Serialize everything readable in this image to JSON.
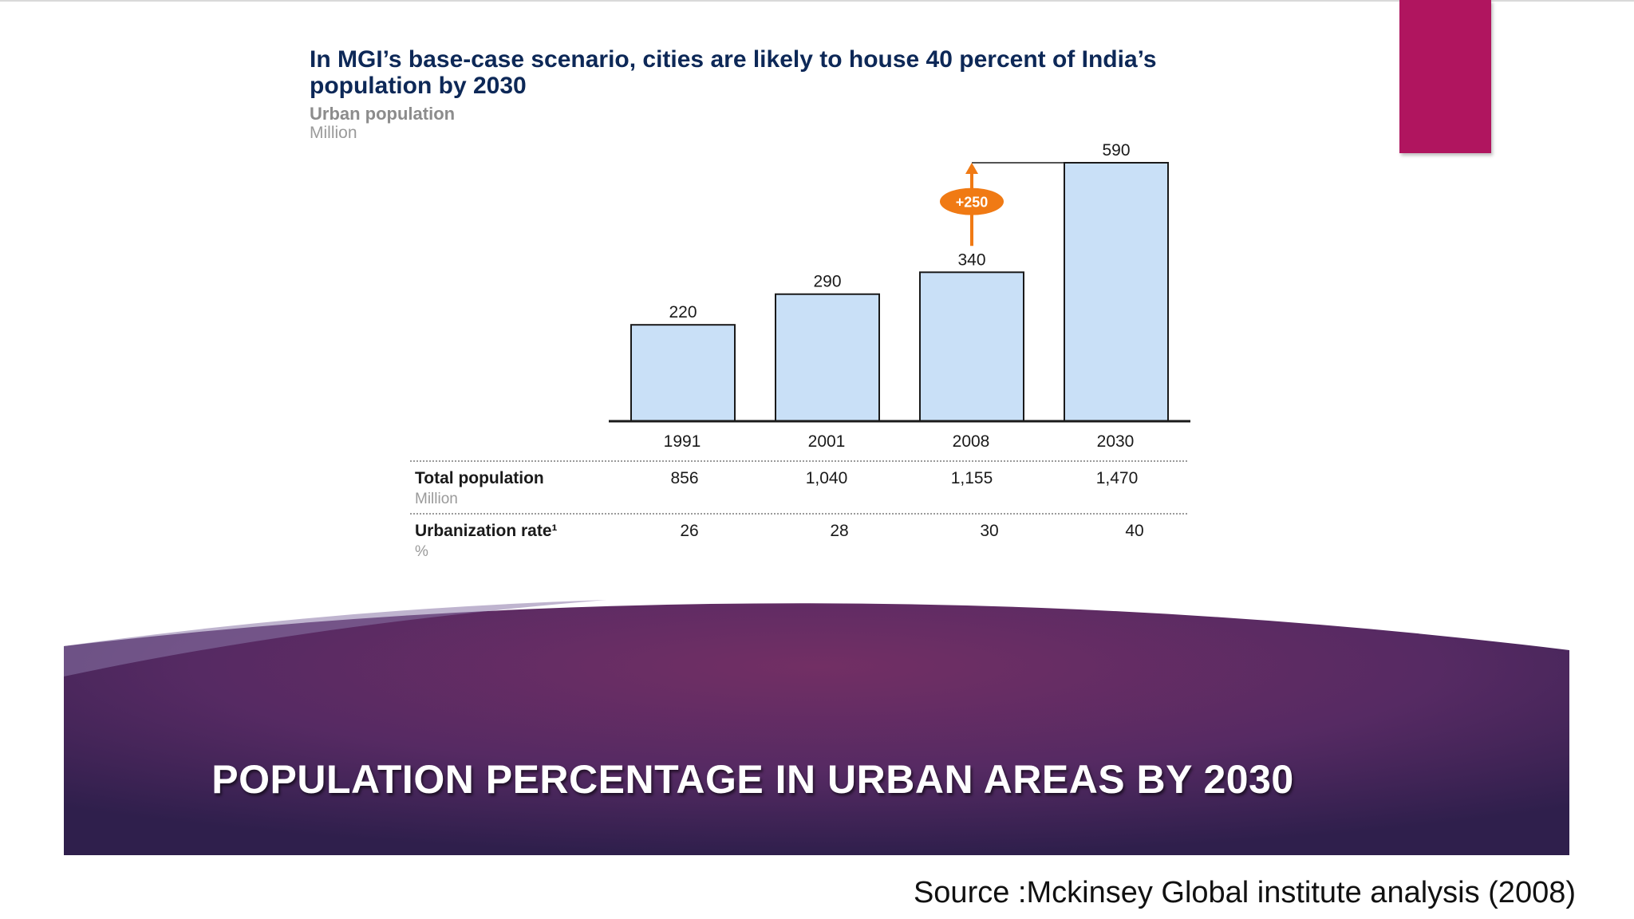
{
  "slide": {
    "accent_color": "#b0155f",
    "banner_title": "POPULATION PERCENTAGE IN URBAN AREAS BY 2030",
    "source": "Source :Mckinsey Global institute analysis (2008)"
  },
  "chart_data": {
    "type": "bar",
    "title": "In MGI’s base-case scenario, cities are likely to house 40 percent of India’s population by 2030",
    "subtitle": "Urban population",
    "unit": "Million",
    "categories": [
      "1991",
      "2001",
      "2008",
      "2030"
    ],
    "values": [
      220,
      290,
      340,
      590
    ],
    "ylim": [
      0,
      590
    ],
    "bar_color": "#c9e0f7",
    "annotation": {
      "label": "+250",
      "from": "2008",
      "to": "2030",
      "color": "#f07a14"
    },
    "table": [
      {
        "label": "Total population",
        "unit": "Million",
        "values": [
          "856",
          "1,040",
          "1,155",
          "1,470"
        ]
      },
      {
        "label": "Urbanization rate¹",
        "unit": "%",
        "values": [
          "26",
          "28",
          "30",
          "40"
        ]
      }
    ]
  }
}
